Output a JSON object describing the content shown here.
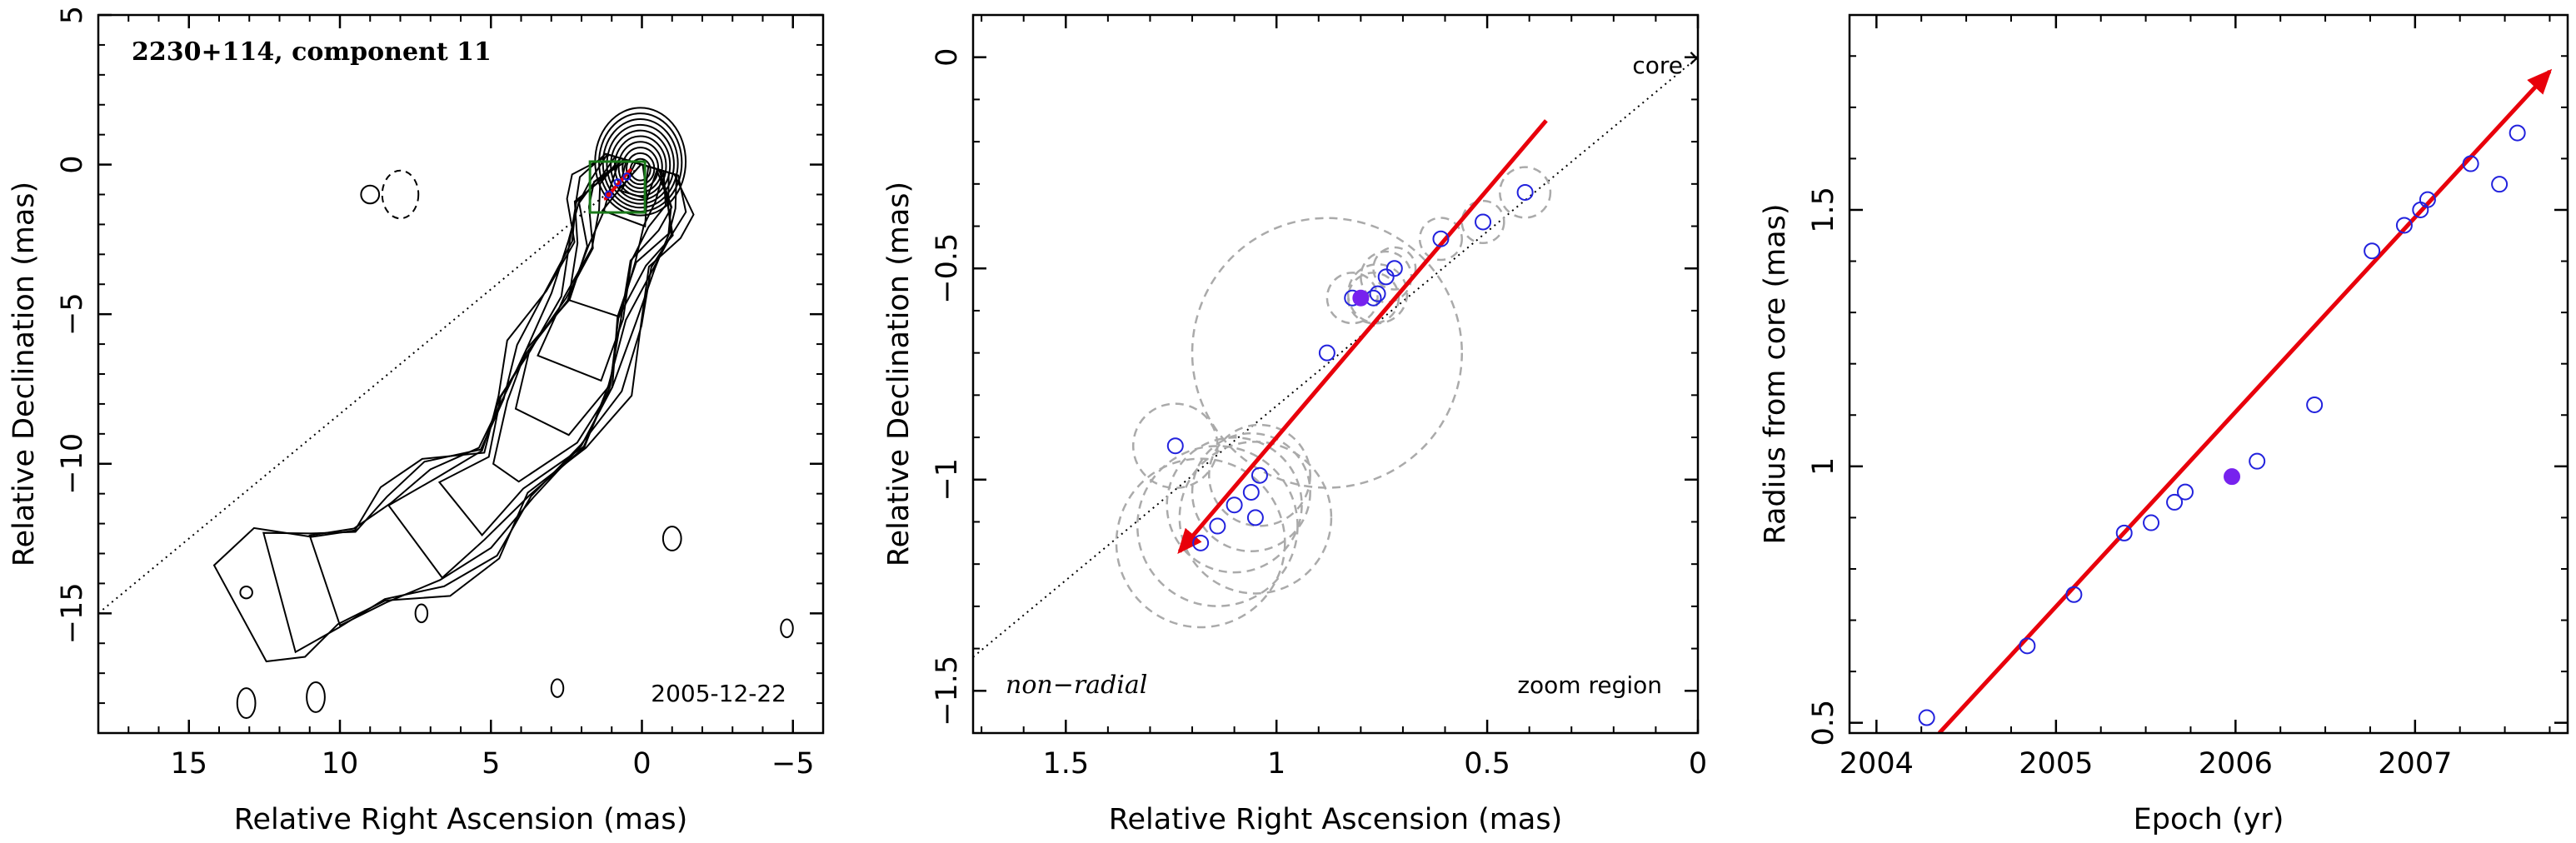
{
  "chart_data": [
    {
      "type": "scatter",
      "subtype": "contour-map",
      "title": "2230+114, component 11",
      "date": "2005-12-22",
      "xlabel": "Relative Right Ascension (mas)",
      "ylabel": "Relative Declination (mas)",
      "xlim": [
        18,
        -6
      ],
      "ylim": [
        -19,
        5
      ],
      "xticks": [
        15,
        10,
        5,
        0,
        -5
      ],
      "yticks": [
        5,
        0,
        -5,
        -10,
        -15
      ],
      "xtick_labels": [
        "15",
        "10",
        "5",
        "0",
        "−5"
      ],
      "ytick_labels": [
        "5",
        "0",
        "−5",
        "−10",
        "−15"
      ],
      "reference_line": {
        "from": [
          18,
          -15
        ],
        "to": [
          0,
          0
        ],
        "style": "dotted"
      },
      "zoom_box": {
        "x": [
          1.72,
          -0.1
        ],
        "y": [
          -1.6,
          0.1
        ],
        "color": "#1a7a1a"
      },
      "jet_ridge": [
        [
          0,
          0
        ],
        [
          0.3,
          -1.0
        ],
        [
          0.6,
          -1.8
        ],
        [
          1.0,
          -3.0
        ],
        [
          1.6,
          -4.8
        ],
        [
          2.4,
          -6.8
        ],
        [
          3.3,
          -8.6
        ],
        [
          4.5,
          -10.3
        ],
        [
          6.0,
          -11.5
        ],
        [
          7.5,
          -12.6
        ],
        [
          9.0,
          -13.4
        ],
        [
          10.5,
          -13.9
        ],
        [
          12.0,
          -14.3
        ],
        [
          13.3,
          -15.0
        ]
      ],
      "contour_count": 12,
      "colors": {
        "contour": "#000000",
        "arrow": "#e8000b",
        "box": "#1a7a1a",
        "points": "#2222dd"
      }
    },
    {
      "type": "scatter",
      "note_left": "non−radial",
      "note_right": "zoom region",
      "core_label": "core",
      "xlabel": "Relative Right Ascension (mas)",
      "ylabel": "Relative Declination (mas)",
      "xlim": [
        1.72,
        0
      ],
      "ylim": [
        -1.6,
        0.1
      ],
      "xticks": [
        1.5,
        1,
        0.5,
        0
      ],
      "yticks": [
        0,
        -0.5,
        -1,
        -1.5
      ],
      "xtick_labels": [
        "1.5",
        "1",
        "0.5",
        "0"
      ],
      "ytick_labels": [
        "0",
        "−0.5",
        "−1",
        "−1.5"
      ],
      "reference_line": {
        "from": [
          1.72,
          -1.42
        ],
        "to": [
          0,
          0
        ],
        "style": "dotted"
      },
      "arrow": {
        "from": [
          0.36,
          -0.15
        ],
        "to": [
          1.23,
          -1.17
        ],
        "color": "#e8000b"
      },
      "points": [
        {
          "x": 1.24,
          "y": -0.92,
          "r": 0.1
        },
        {
          "x": 1.18,
          "y": -1.15,
          "r": 0.2
        },
        {
          "x": 1.14,
          "y": -1.11,
          "r": 0.19
        },
        {
          "x": 1.1,
          "y": -1.06,
          "r": 0.16
        },
        {
          "x": 1.06,
          "y": -1.03,
          "r": 0.14
        },
        {
          "x": 1.05,
          "y": -1.09,
          "r": 0.18
        },
        {
          "x": 1.04,
          "y": -0.99,
          "r": 0.12
        },
        {
          "x": 0.88,
          "y": -0.7,
          "r": 0.32
        },
        {
          "x": 0.82,
          "y": -0.57,
          "r": 0.06
        },
        {
          "x": 0.77,
          "y": -0.57,
          "r": 0.06
        },
        {
          "x": 0.76,
          "y": -0.56,
          "r": 0.07
        },
        {
          "x": 0.74,
          "y": -0.52,
          "r": 0.06
        },
        {
          "x": 0.72,
          "y": -0.5,
          "r": 0.05
        },
        {
          "x": 0.61,
          "y": -0.43,
          "r": 0.05
        },
        {
          "x": 0.51,
          "y": -0.39,
          "r": 0.05
        },
        {
          "x": 0.41,
          "y": -0.32,
          "r": 0.06
        }
      ],
      "filled_point": {
        "x": 0.8,
        "y": -0.57
      },
      "colors": {
        "points": "#2222dd",
        "filled_point": "#7722ee",
        "circles": "#aaaaaa",
        "arrow": "#e8000b"
      }
    },
    {
      "type": "scatter",
      "xlabel": "Epoch (yr)",
      "ylabel": "Radius from core (mas)",
      "xlim": [
        2003.85,
        2007.85
      ],
      "ylim": [
        0.48,
        1.88
      ],
      "xticks": [
        2004,
        2005,
        2006,
        2007
      ],
      "yticks": [
        0.5,
        1,
        1.5
      ],
      "xtick_labels": [
        "2004",
        "2005",
        "2006",
        "2007"
      ],
      "ytick_labels": [
        "0.5",
        "1",
        "1.5"
      ],
      "fit_arrow": {
        "from": [
          2004.35,
          0.48
        ],
        "to": [
          2007.75,
          1.77
        ],
        "color": "#e8000b"
      },
      "points": [
        {
          "x": 2004.28,
          "y": 0.51
        },
        {
          "x": 2004.84,
          "y": 0.65
        },
        {
          "x": 2005.1,
          "y": 0.75
        },
        {
          "x": 2005.38,
          "y": 0.87
        },
        {
          "x": 2005.53,
          "y": 0.89
        },
        {
          "x": 2005.66,
          "y": 0.93
        },
        {
          "x": 2005.72,
          "y": 0.95
        },
        {
          "x": 2006.12,
          "y": 1.01
        },
        {
          "x": 2006.44,
          "y": 1.12
        },
        {
          "x": 2006.76,
          "y": 1.42
        },
        {
          "x": 2006.94,
          "y": 1.47
        },
        {
          "x": 2007.03,
          "y": 1.5
        },
        {
          "x": 2007.07,
          "y": 1.52
        },
        {
          "x": 2007.31,
          "y": 1.59
        },
        {
          "x": 2007.47,
          "y": 1.55
        },
        {
          "x": 2007.57,
          "y": 1.65
        }
      ],
      "filled_point": {
        "x": 2005.98,
        "y": 0.98
      },
      "colors": {
        "points": "#2222dd",
        "filled_point": "#7722ee",
        "arrow": "#e8000b"
      }
    }
  ]
}
